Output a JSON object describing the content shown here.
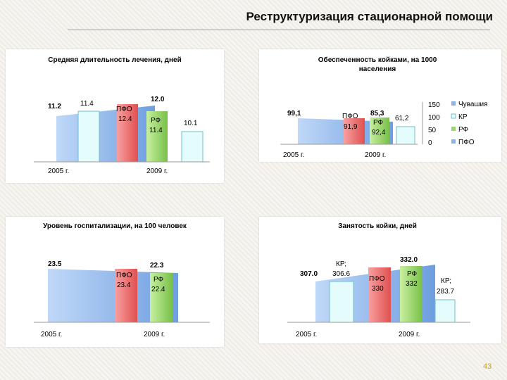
{
  "slide": {
    "title": "Реструктуризация стационарной помощи",
    "page_number": "43"
  },
  "colors": {
    "chuvashia": "#8cb4ec",
    "kr": "#e4fcfc",
    "pfo": "#f06c6c",
    "rf": "#98d870"
  },
  "chart_data": [
    {
      "type": "bar",
      "title": "Средняя длительность лечения, дней",
      "categories": [
        "2005 г.",
        "2009 г."
      ],
      "series": [
        {
          "key": "chuvashia",
          "values": [
            11.2,
            12.0
          ]
        },
        {
          "key": "kr",
          "values": [
            11.4,
            10.1
          ]
        },
        {
          "key": "pfo",
          "name": "ПФО",
          "values": [
            null,
            12.4
          ]
        },
        {
          "key": "rf",
          "name": "РФ",
          "values": [
            null,
            11.4
          ]
        }
      ],
      "ylim": [
        8,
        13
      ]
    },
    {
      "type": "bar",
      "title": "Обеспеченность койками, на 1000 населения",
      "categories": [
        "2005 г.",
        "2009 г."
      ],
      "series": [
        {
          "key": "chuvashia",
          "name": "Чувашия",
          "values": [
            99.1,
            85.3
          ]
        },
        {
          "key": "kr",
          "name": "КР",
          "values": [
            null,
            61.2
          ]
        },
        {
          "key": "pfo",
          "name": "ПФО",
          "values": [
            null,
            91.9
          ]
        },
        {
          "key": "rf",
          "name": "РФ",
          "values": [
            null,
            92.4
          ]
        }
      ],
      "yticks": [
        "150",
        "100",
        "50",
        "0"
      ],
      "ylim": [
        0,
        150
      ]
    },
    {
      "type": "bar",
      "title": "Уровень госпитализации, на 100 человек",
      "categories": [
        "2005 г.",
        "2009 г."
      ],
      "series": [
        {
          "key": "chuvashia",
          "values": [
            23.5,
            22.3
          ]
        },
        {
          "key": "pfo",
          "name": "ПФО",
          "values": [
            null,
            23.4
          ]
        },
        {
          "key": "rf",
          "name": "РФ",
          "values": [
            null,
            22.4
          ]
        }
      ],
      "ylim": [
        0,
        25
      ]
    },
    {
      "type": "bar",
      "title": "Занятость койки, дней",
      "categories": [
        "2005 г.",
        "2009 г."
      ],
      "series": [
        {
          "key": "chuvashia",
          "values": [
            307.0,
            332.0
          ]
        },
        {
          "key": "kr",
          "name": "КР;",
          "values": [
            306.6,
            283.7
          ]
        },
        {
          "key": "pfo",
          "name": "ПФО",
          "values": [
            null,
            330
          ]
        },
        {
          "key": "rf",
          "name": "РФ",
          "values": [
            null,
            332
          ]
        }
      ],
      "ylim": [
        250,
        340
      ]
    }
  ],
  "labels": {
    "c1": {
      "chuv_2005": "11.2",
      "kr_2005": "11.4",
      "pfo_name": "ПФО",
      "pfo_val": "12.4",
      "chuv_2009": "12.0",
      "rf_name": "РФ",
      "rf_val": "11.4",
      "kr_2009": "10.1"
    },
    "c2": {
      "chuv_2005": "99,1",
      "pfo_name": "ПФО",
      "pfo_val": "91,9",
      "chuv_2009": "85,3",
      "rf_name": "РФ",
      "rf_val": "92,4",
      "kr_2009": "61,2"
    },
    "c3": {
      "chuv_2005": "23.5",
      "pfo_name": "ПФО",
      "pfo_val": "23.4",
      "chuv_2009": "22.3",
      "rf_name": "РФ",
      "rf_val": "22.4"
    },
    "c4": {
      "chuv_2005": "307.0",
      "kr_name": "КР;",
      "kr_2005": "306.6",
      "pfo_name": "ПФО",
      "pfo_val": "330",
      "chuv_2009": "332.0",
      "rf_name": "РФ",
      "rf_val": "332",
      "kr_name2": "КР;",
      "kr_2009": "283.7"
    }
  }
}
